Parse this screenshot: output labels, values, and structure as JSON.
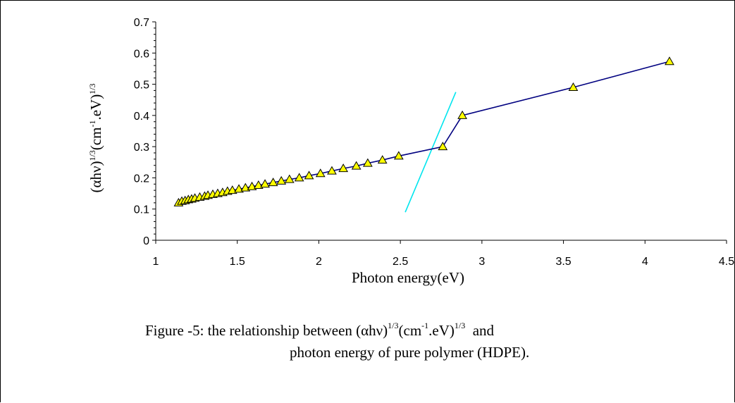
{
  "chart_data": {
    "type": "line",
    "xlabel": "Photon energy(eV)",
    "ylabel": {
      "base": "(αhν)",
      "exp1": "1/3",
      "mid": "(cm",
      "exp2": "-1",
      "rest": ".eV)",
      "exp3": "1/3"
    },
    "xlim": [
      1,
      4.5
    ],
    "ylim": [
      0,
      0.7
    ],
    "x_ticks": [
      "1",
      "1.5",
      "2",
      "2.5",
      "3",
      "3.5",
      "4",
      "4.5"
    ],
    "y_ticks": [
      "0",
      "0.1",
      "0.2",
      "0.3",
      "0.4",
      "0.5",
      "0.6",
      "0.7"
    ],
    "grid": false,
    "legend": "none",
    "series": [
      {
        "marker": "triangle",
        "marker_fill": "#ffff00",
        "line_color": "#000080",
        "x": [
          1.14,
          1.16,
          1.18,
          1.2,
          1.22,
          1.24,
          1.27,
          1.3,
          1.32,
          1.35,
          1.38,
          1.41,
          1.44,
          1.47,
          1.51,
          1.55,
          1.59,
          1.63,
          1.67,
          1.72,
          1.77,
          1.82,
          1.88,
          1.94,
          2.01,
          2.08,
          2.15,
          2.23,
          2.3,
          2.39,
          2.49,
          2.76,
          2.88,
          3.56,
          4.15
        ],
        "y": [
          0.12,
          0.125,
          0.127,
          0.13,
          0.132,
          0.135,
          0.138,
          0.141,
          0.144,
          0.147,
          0.15,
          0.153,
          0.157,
          0.16,
          0.164,
          0.168,
          0.172,
          0.176,
          0.18,
          0.185,
          0.19,
          0.195,
          0.2,
          0.207,
          0.214,
          0.222,
          0.23,
          0.238,
          0.247,
          0.257,
          0.27,
          0.3,
          0.4,
          0.49,
          0.573
        ]
      }
    ],
    "annotations": [
      {
        "type": "line",
        "color": "#00e5ee",
        "x": [
          2.53,
          2.84
        ],
        "y": [
          0.09,
          0.475
        ]
      }
    ]
  },
  "caption": {
    "line1_prefix": "Figure -5: the relationship between (αhν)",
    "exp1": "1/3",
    "mid": "(cm",
    "exp2": "-1",
    "rest": ".eV)",
    "exp3": "1/3",
    "suffix": "  and",
    "line2": "photon energy of pure polymer (HDPE)."
  }
}
